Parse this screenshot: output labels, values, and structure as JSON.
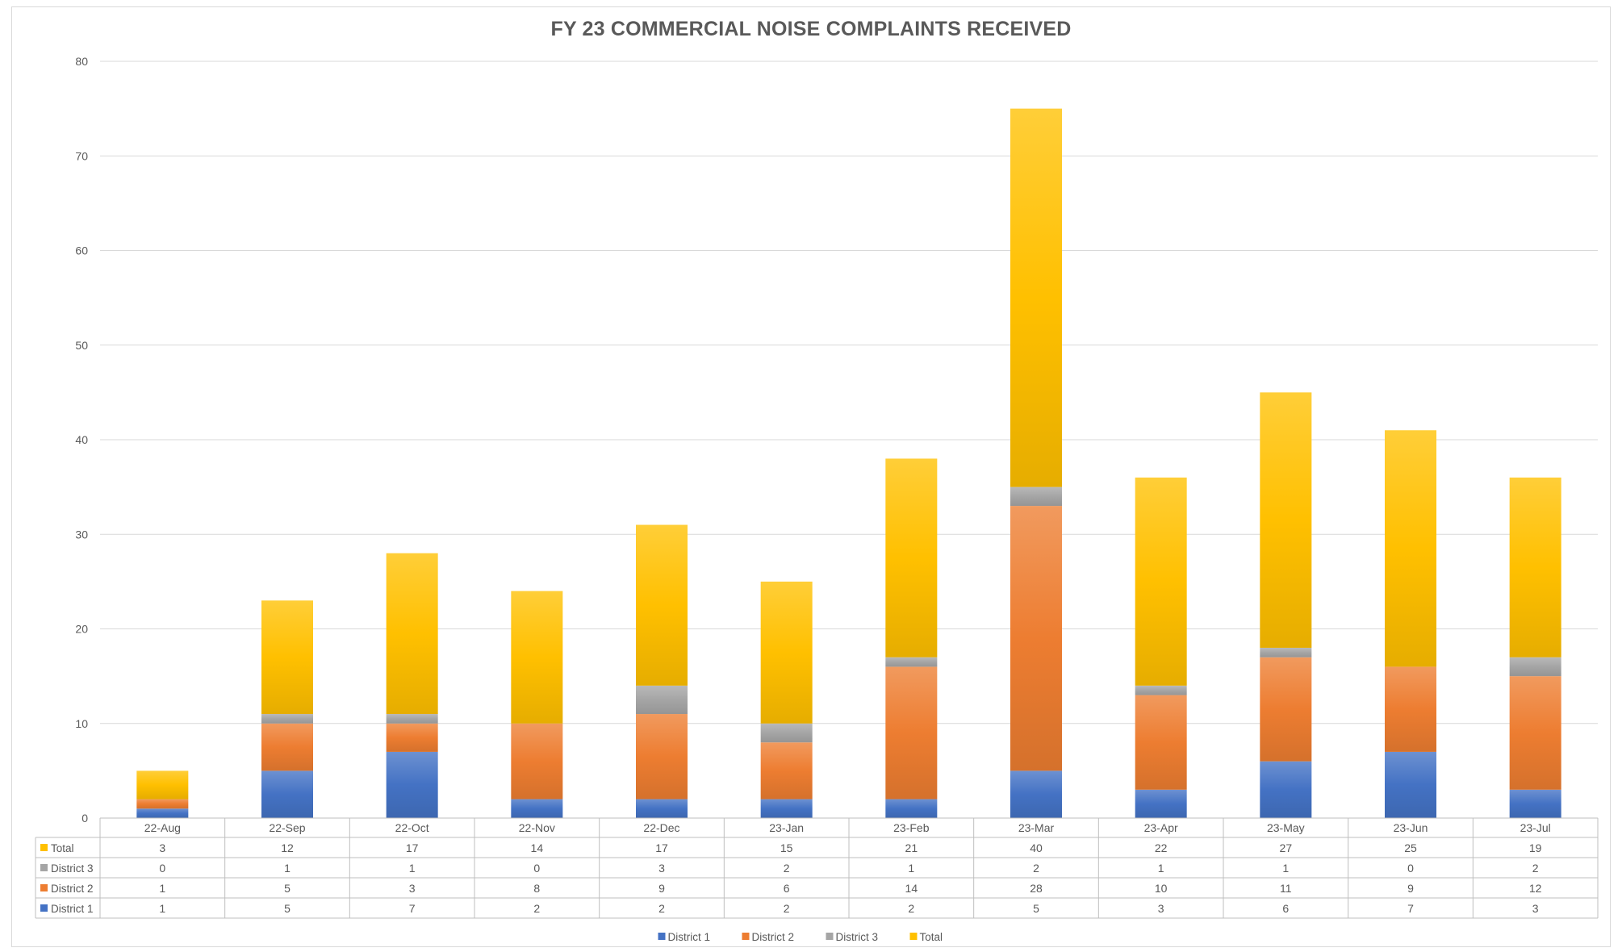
{
  "chart_data": {
    "type": "bar",
    "stacked": true,
    "title": "FY 23 COMMERCIAL NOISE COMPLAINTS RECEIVED",
    "categories": [
      "22-Aug",
      "22-Sep",
      "22-Oct",
      "22-Nov",
      "22-Dec",
      "23-Jan",
      "23-Feb",
      "23-Mar",
      "23-Apr",
      "23-May",
      "23-Jun",
      "23-Jul"
    ],
    "series": [
      {
        "name": "District 1",
        "color": "#4472C4",
        "values": [
          1,
          5,
          7,
          2,
          2,
          2,
          2,
          5,
          3,
          6,
          7,
          3
        ]
      },
      {
        "name": "District 2",
        "color": "#ED7D31",
        "values": [
          1,
          5,
          3,
          8,
          9,
          6,
          14,
          28,
          10,
          11,
          9,
          12
        ]
      },
      {
        "name": "District 3",
        "color": "#A5A5A5",
        "values": [
          0,
          1,
          1,
          0,
          3,
          2,
          1,
          2,
          1,
          1,
          0,
          2
        ]
      },
      {
        "name": "Total",
        "color": "#FFC000",
        "values": [
          3,
          12,
          17,
          14,
          17,
          15,
          21,
          40,
          22,
          27,
          25,
          19
        ]
      }
    ],
    "ylim": [
      0,
      80
    ],
    "yticks": [
      0,
      10,
      20,
      30,
      40,
      50,
      60,
      70,
      80
    ],
    "grid": true,
    "legend": "bottom",
    "data_table": true,
    "table_row_order": [
      "Total",
      "District 3",
      "District 2",
      "District 1"
    ]
  }
}
